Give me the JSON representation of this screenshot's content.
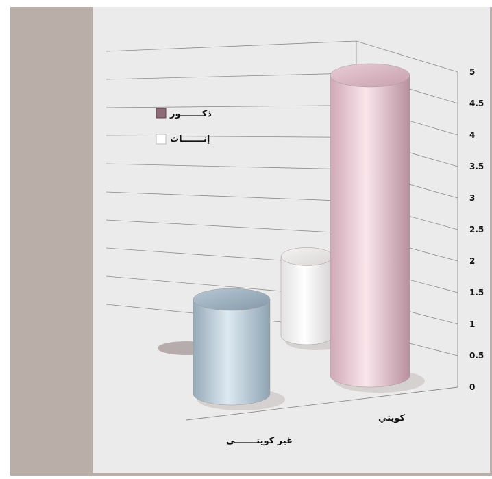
{
  "chart_data": {
    "type": "bar",
    "style": "3d-cylinder",
    "categories": [
      "كويتي",
      "غير كويتـــــــي"
    ],
    "series": [
      {
        "name": "ذكـــــــور",
        "color": "#8e6a77",
        "values": [
          5,
          0
        ]
      },
      {
        "name": "إنـــــــاث",
        "color": "#ffffff",
        "values": [
          1.7,
          2
        ]
      }
    ],
    "series_bar_colors": [
      "#e8c9d2",
      "#f2f2f2",
      "#b9cad6"
    ],
    "ylim": [
      0,
      5
    ],
    "yticks": [
      "0",
      "0.5",
      "1",
      "1.5",
      "2",
      "2.5",
      "3",
      "3.5",
      "4",
      "4.5",
      "5"
    ],
    "grid": true,
    "legend_position": "top-left"
  }
}
